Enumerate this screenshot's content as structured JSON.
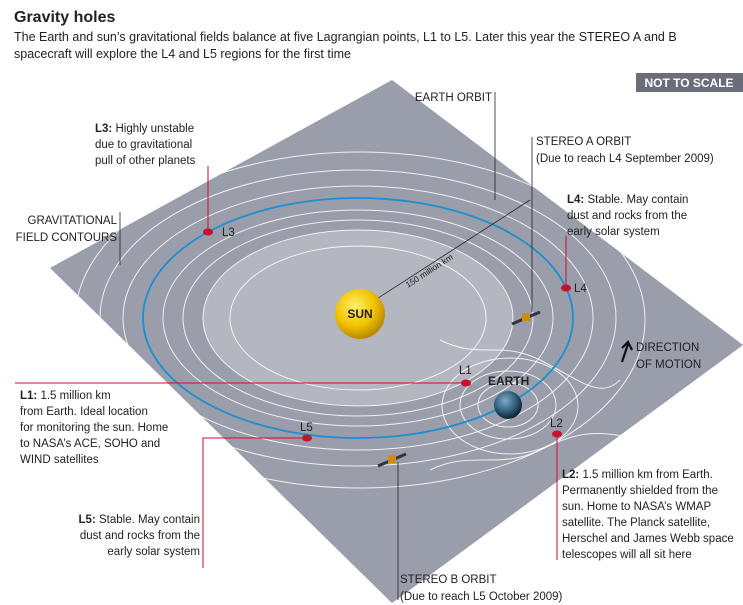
{
  "header": {
    "title": "Gravity holes",
    "subtitle_lines": [
      "The Earth and sun’s gravitational fields balance at five Lagrangian points, L1 to L5. Later this year the STEREO A and B",
      "spacecraft will explore the L4 and L5 regions for the first time"
    ],
    "badge": "NOT TO SCALE"
  },
  "labels": {
    "earth_orbit": "EARTH ORBIT",
    "contours": [
      "GRAVITATIONAL",
      "FIELD CONTOURS"
    ],
    "stereo_a": [
      "STEREO A ORBIT",
      "(Due to reach L4 September 2009)"
    ],
    "stereo_b": [
      "STEREO B ORBIT",
      "(Due to reach L5 October 2009)"
    ],
    "distance": "150 million km",
    "sun": "SUN",
    "earth": "EARTH",
    "motion": [
      "DIRECTION",
      "OF MOTION"
    ]
  },
  "points": {
    "L1": "L1",
    "L2": "L2",
    "L3": "L3",
    "L4": "L4",
    "L5": "L5"
  },
  "callouts": {
    "L3": {
      "heading": "L3:",
      "lines": [
        "Highly unstable",
        "due to gravitational",
        "pull of other planets"
      ]
    },
    "L4": {
      "heading": "L4:",
      "lines": [
        "Stable. May contain",
        "dust and rocks from the",
        "early solar system"
      ]
    },
    "L1": {
      "heading": "L1:",
      "lines": [
        "1.5 million km",
        "from Earth. Ideal location",
        "for monitoring the sun. Home",
        "to NASA’s ACE, SOHO and",
        "WIND satellites"
      ]
    },
    "L2": {
      "heading": "L2:",
      "lines": [
        "1.5 million km from Earth.",
        "Permanently shielded from the",
        "sun. Home to NASA’s WMAP",
        "satellite. The Planck satellite,",
        "Herschel and James Webb space",
        "telescopes will all sit here"
      ]
    },
    "L5": {
      "heading": "L5:",
      "lines": [
        "Stable. May contain",
        "dust and rocks from the",
        "early solar system"
      ]
    }
  }
}
